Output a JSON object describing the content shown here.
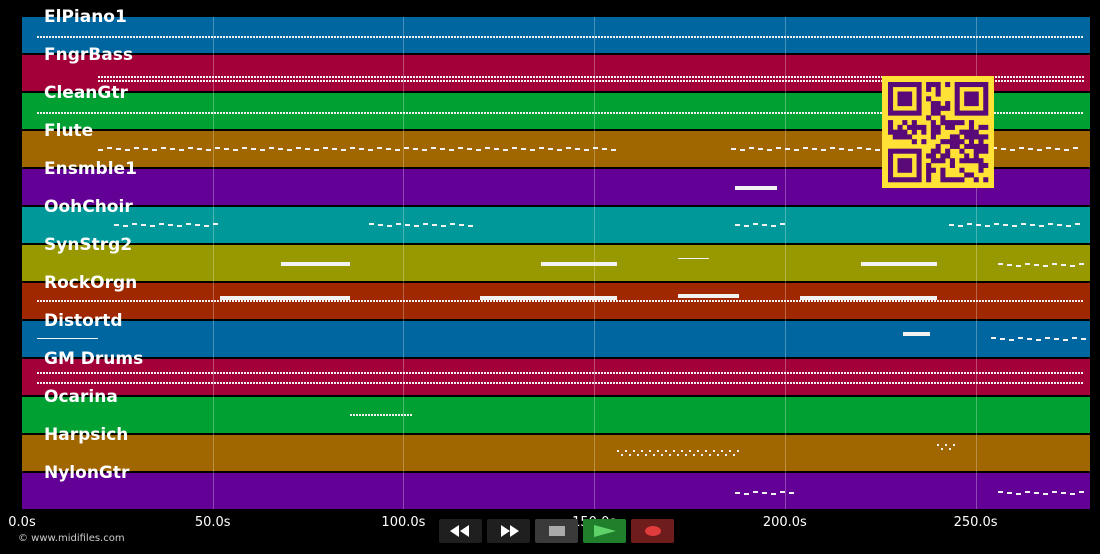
{
  "tracks": [
    {
      "name": "ElPiano1",
      "color": "#0066a0"
    },
    {
      "name": "FngrBass",
      "color": "#a3003a"
    },
    {
      "name": "CleanGtr",
      "color": "#00a032"
    },
    {
      "name": "Flute",
      "color": "#a06600"
    },
    {
      "name": "Ensmble1",
      "color": "#630096"
    },
    {
      "name": "OohChoir",
      "color": "#009898"
    },
    {
      "name": "SynStrg2",
      "color": "#989800"
    },
    {
      "name": "RockOrgn",
      "color": "#a02800"
    },
    {
      "name": "Distortd",
      "color": "#0066a0"
    },
    {
      "name": "GM Drums",
      "color": "#a3003a"
    },
    {
      "name": "Ocarina",
      "color": "#00a032"
    },
    {
      "name": "Harpsich",
      "color": "#a06600"
    },
    {
      "name": "NylonGtr",
      "color": "#630096"
    }
  ],
  "timeline": {
    "max_seconds": 280,
    "ticks": [
      {
        "value": 0,
        "label": "0.0s"
      },
      {
        "value": 50,
        "label": "50.0s"
      },
      {
        "value": 100,
        "label": "100.0s"
      },
      {
        "value": 150,
        "label": "150.0s"
      },
      {
        "value": 200,
        "label": "200.0s"
      },
      {
        "value": 250,
        "label": "250.0s"
      }
    ]
  },
  "copyright": "© www.midifiles.com",
  "controls": [
    {
      "name": "rewind-button",
      "icon": "rewind-icon"
    },
    {
      "name": "fast-forward-button",
      "icon": "fast-forward-icon"
    },
    {
      "name": "stop-button",
      "icon": "stop-icon"
    },
    {
      "name": "play-button",
      "icon": "play-icon"
    },
    {
      "name": "record-button",
      "icon": "record-icon"
    }
  ],
  "qr_code": {
    "icon": "qr-code-icon",
    "color": "#ffe235",
    "module_color": "#5a0a78"
  }
}
